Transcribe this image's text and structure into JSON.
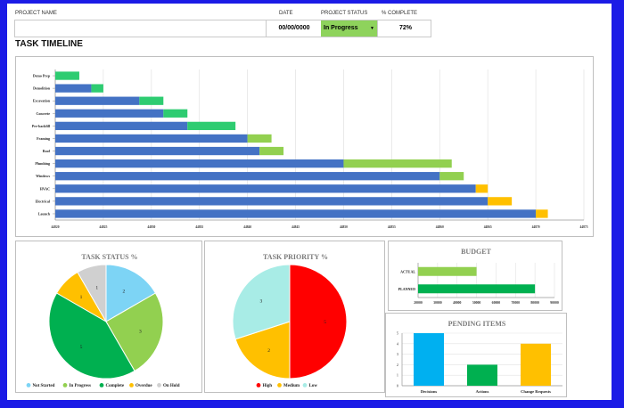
{
  "header": {
    "labels": {
      "project_name": "PROJECT NAME",
      "date": "DATE",
      "status": "PROJECT STATUS",
      "pct": "% COMPLETE"
    },
    "values": {
      "project_name": "",
      "date": "00/00/0000",
      "status": "In Progress",
      "pct": "72%"
    },
    "status_color": "#8ed35c"
  },
  "section_title": "TASK TIMELINE",
  "chart_data": [
    {
      "type": "bar",
      "orientation": "horizontal",
      "stacked": true,
      "categories": [
        "Demo Prep",
        "Demolition",
        "Excavation",
        "Concrete",
        "Pre-backfill",
        "Framing",
        "Roof",
        "Plumbing",
        "Windows",
        "HVAC",
        "Electrical",
        "Launch"
      ],
      "start_values": [
        0,
        3,
        7,
        9,
        11,
        16,
        17,
        24,
        32,
        35,
        36,
        40
      ],
      "series": [
        {
          "values": [
            2,
            1,
            2,
            2,
            4,
            2,
            2,
            9,
            2,
            1,
            2,
            1
          ]
        }
      ],
      "segment_colors": [
        "#2ecc71",
        "#2ecc71",
        "#2ecc71",
        "#2ecc71",
        "#2ecc71",
        "#92d050",
        "#92d050",
        "#92d050",
        "#92d050",
        "#ffc000",
        "#ffc000",
        "#ffc000"
      ],
      "base_color": "#4472c4",
      "x_ticks": [
        "44820",
        "44825",
        "44830",
        "44835",
        "44840",
        "44845",
        "44850",
        "44855",
        "44860",
        "44865",
        "44870",
        "44875"
      ],
      "grid": true
    },
    {
      "type": "pie",
      "title": "TASK STATUS %",
      "labels": [
        "Not Started",
        "In Progress",
        "Complete",
        "Overdue",
        "On Hold"
      ],
      "values": [
        2,
        3,
        5,
        1,
        1
      ],
      "colors": [
        "#7dd4f5",
        "#92d050",
        "#00b050",
        "#ffc000",
        "#d0d0d0"
      ],
      "legend": "bottom"
    },
    {
      "type": "pie",
      "title": "TASK PRIORITY %",
      "labels": [
        "High",
        "Medium",
        "Low"
      ],
      "values": [
        5,
        2,
        3
      ],
      "colors": [
        "#ff0000",
        "#ffc000",
        "#a8ece6"
      ],
      "legend": "bottom"
    },
    {
      "type": "bar",
      "orientation": "horizontal",
      "title": "BUDGET",
      "categories": [
        "ACTUAL",
        "PLANNED"
      ],
      "values": [
        50000,
        80000
      ],
      "colors": [
        "#92d050",
        "#00b050"
      ],
      "xlim": [
        20000,
        90000
      ],
      "x_ticks": [
        "20000",
        "30000",
        "40000",
        "50000",
        "60000",
        "70000",
        "80000",
        "90000"
      ]
    },
    {
      "type": "bar",
      "title": "PENDING ITEMS",
      "categories": [
        "Decisions",
        "Actions",
        "Change Requests"
      ],
      "values": [
        5,
        2,
        4
      ],
      "colors": [
        "#00b0f0",
        "#00b050",
        "#ffc000"
      ],
      "ylim": [
        0,
        5
      ],
      "y_ticks": [
        "0",
        "1",
        "2",
        "3",
        "4",
        "5"
      ]
    }
  ]
}
